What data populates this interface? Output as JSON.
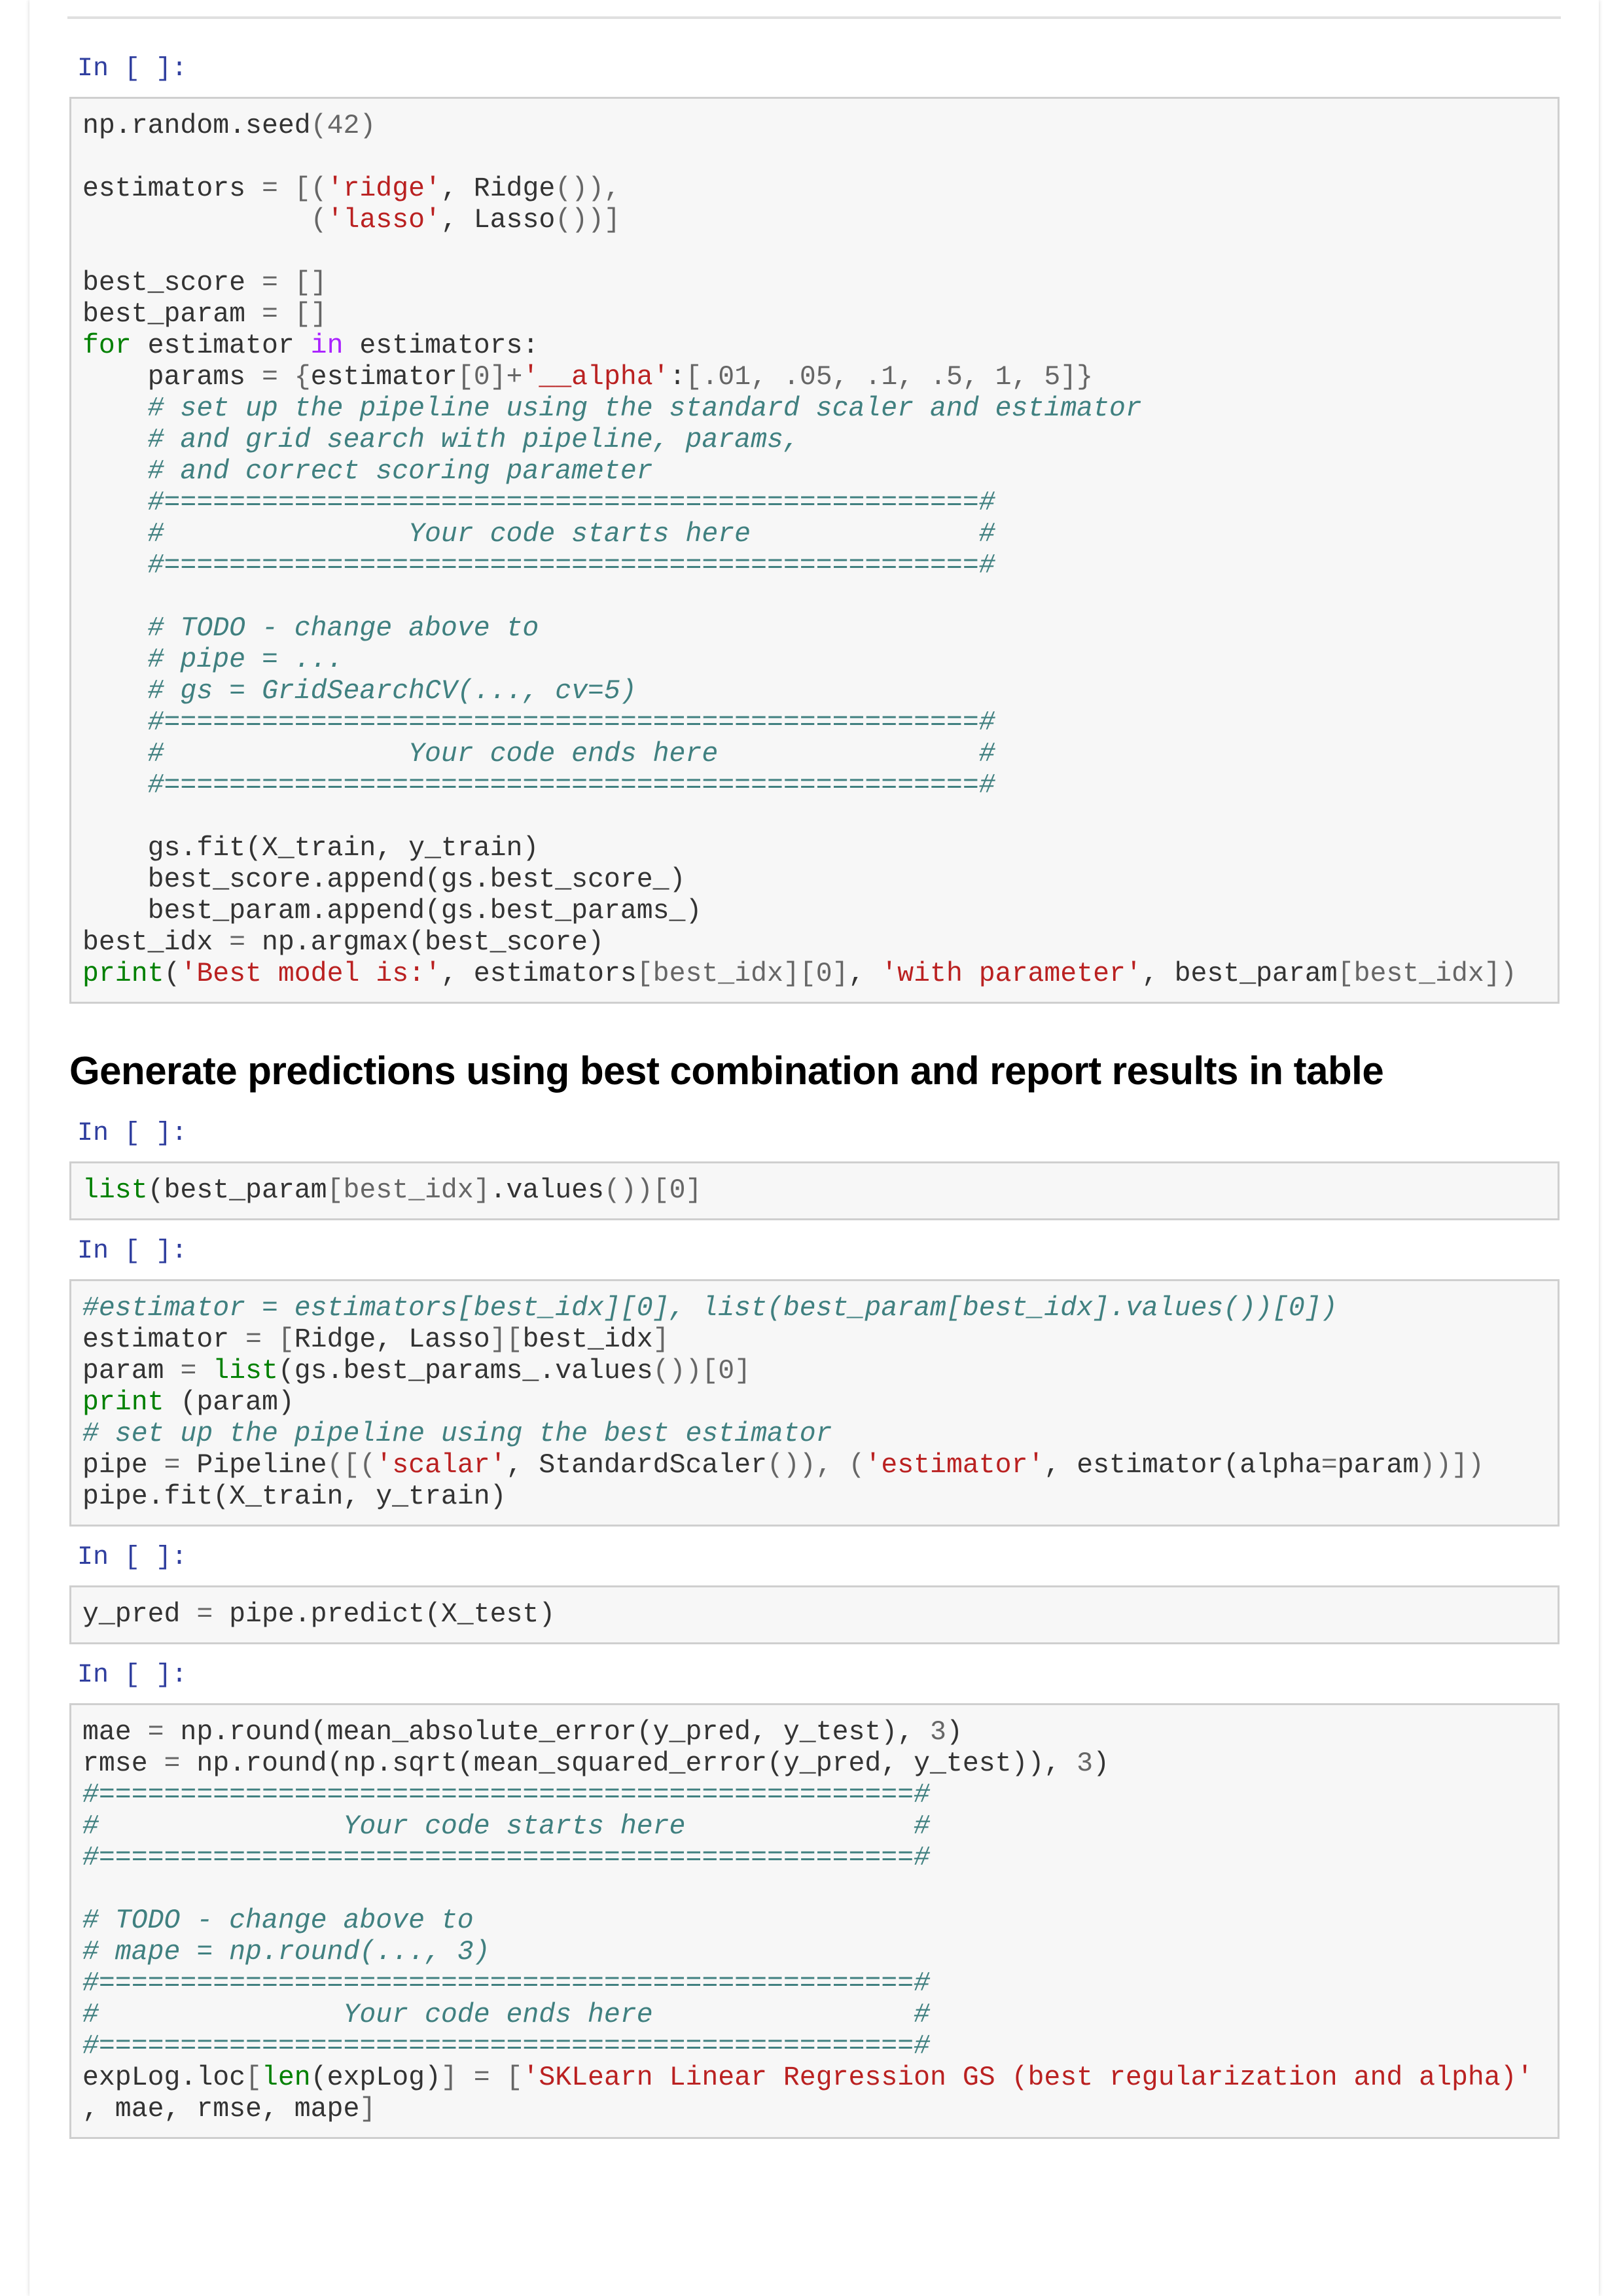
{
  "colors": {
    "prompt": "#303f9f",
    "keyword": "#008000",
    "operator_word": "#aa22ff",
    "string": "#ba2121",
    "comment": "#408080",
    "cell_bg": "#f7f7f7"
  },
  "cells": [
    {
      "prompt": "In [ ]:",
      "lines": [
        [
          [
            "n",
            "np.random.seed"
          ],
          [
            "o",
            "("
          ],
          [
            "o",
            "42"
          ],
          [
            "o",
            ")"
          ]
        ],
        [],
        [
          [
            "n",
            "estimators "
          ],
          [
            "o",
            "="
          ],
          [
            "o",
            " [("
          ],
          [
            "s",
            "'ridge'"
          ],
          [
            "n",
            ", Ridge"
          ],
          [
            "o",
            "()),"
          ]
        ],
        [
          [
            "n",
            "              "
          ],
          [
            "o",
            "("
          ],
          [
            "s",
            "'lasso'"
          ],
          [
            "n",
            ", Lasso"
          ],
          [
            "o",
            "())]"
          ]
        ],
        [],
        [
          [
            "n",
            "best_score "
          ],
          [
            "o",
            "= []"
          ]
        ],
        [
          [
            "n",
            "best_param "
          ],
          [
            "o",
            "= []"
          ]
        ],
        [
          [
            "k",
            "for"
          ],
          [
            "n",
            " estimator "
          ],
          [
            "w",
            "in"
          ],
          [
            "n",
            " estimators:"
          ]
        ],
        [
          [
            "n",
            "    params "
          ],
          [
            "o",
            "= {"
          ],
          [
            "n",
            "estimator"
          ],
          [
            "o",
            "[0]+"
          ],
          [
            "s",
            "'__alpha'"
          ],
          [
            "n",
            ":"
          ],
          [
            "o",
            "[.01, .05, .1, .5, 1, 5]}"
          ]
        ],
        [
          [
            "c",
            "    # set up the pipeline using the standard scaler and estimator"
          ]
        ],
        [
          [
            "c",
            "    # and grid search with pipeline, params,"
          ]
        ],
        [
          [
            "c",
            "    # and correct scoring parameter"
          ]
        ],
        [
          [
            "c",
            "    #==================================================#"
          ]
        ],
        [
          [
            "c",
            "    #               Your code starts here              #"
          ]
        ],
        [
          [
            "c",
            "    #==================================================#"
          ]
        ],
        [],
        [
          [
            "c",
            "    # TODO - change above to"
          ]
        ],
        [
          [
            "c",
            "    # pipe = ..."
          ]
        ],
        [
          [
            "c",
            "    # gs = GridSearchCV(..., cv=5)"
          ]
        ],
        [
          [
            "c",
            "    #==================================================#"
          ]
        ],
        [
          [
            "c",
            "    #               Your code ends here                #"
          ]
        ],
        [
          [
            "c",
            "    #==================================================#"
          ]
        ],
        [],
        [
          [
            "n",
            "    gs.fit(X_train, y_train)"
          ]
        ],
        [
          [
            "n",
            "    best_score.append(gs.best_score_)"
          ]
        ],
        [
          [
            "n",
            "    best_param.append(gs.best_params_)"
          ]
        ],
        [
          [
            "n",
            "best_idx "
          ],
          [
            "o",
            "="
          ],
          [
            "n",
            " np.argmax(best_score)"
          ]
        ],
        [
          [
            "k",
            "print"
          ],
          [
            "n",
            "("
          ],
          [
            "s",
            "'Best model is:'"
          ],
          [
            "n",
            ", estimators"
          ],
          [
            "o",
            "[best_idx][0]"
          ],
          [
            "n",
            ", "
          ],
          [
            "s",
            "'with parameter'"
          ],
          [
            "n",
            ", best_param"
          ],
          [
            "o",
            "[best_idx])"
          ]
        ]
      ]
    }
  ],
  "heading": "Generate predictions using best combination and report results in table",
  "cells2": [
    {
      "prompt": "In [ ]:",
      "lines": [
        [
          [
            "k",
            "list"
          ],
          [
            "n",
            "(best_param"
          ],
          [
            "o",
            "[best_idx]"
          ],
          [
            "n",
            ".values"
          ],
          [
            "o",
            "())[0]"
          ]
        ]
      ]
    },
    {
      "prompt": "In [ ]:",
      "lines": [
        [
          [
            "c",
            "#estimator = estimators[best_idx][0], list(best_param[best_idx].values())[0])"
          ]
        ],
        [
          [
            "n",
            "estimator "
          ],
          [
            "o",
            "= ["
          ],
          [
            "n",
            "Ridge, Lasso"
          ],
          [
            "o",
            "]["
          ],
          [
            "n",
            "best_idx"
          ],
          [
            "o",
            "]"
          ]
        ],
        [
          [
            "n",
            "param "
          ],
          [
            "o",
            "="
          ],
          [
            "n",
            " "
          ],
          [
            "k",
            "list"
          ],
          [
            "n",
            "(gs.best_params_.values"
          ],
          [
            "o",
            "())[0]"
          ]
        ],
        [
          [
            "k",
            "print"
          ],
          [
            "n",
            " (param)"
          ]
        ],
        [
          [
            "c",
            "# set up the pipeline using the best estimator"
          ]
        ],
        [
          [
            "n",
            "pipe "
          ],
          [
            "o",
            "="
          ],
          [
            "n",
            " Pipeline"
          ],
          [
            "o",
            "([("
          ],
          [
            "s",
            "'scalar'"
          ],
          [
            "n",
            ", StandardScaler"
          ],
          [
            "o",
            "()), ("
          ],
          [
            "s",
            "'estimator'"
          ],
          [
            "n",
            ", estimator(alpha"
          ],
          [
            "o",
            "="
          ],
          [
            "n",
            "param"
          ],
          [
            "o",
            "))])"
          ]
        ],
        [
          [
            "n",
            "pipe.fit(X_train, y_train)"
          ]
        ]
      ]
    },
    {
      "prompt": "In [ ]:",
      "lines": [
        [
          [
            "n",
            "y_pred "
          ],
          [
            "o",
            "="
          ],
          [
            "n",
            " pipe.predict(X_test)"
          ]
        ]
      ]
    },
    {
      "prompt": "In [ ]:",
      "lines": [
        [
          [
            "n",
            "mae "
          ],
          [
            "o",
            "="
          ],
          [
            "n",
            " np.round(mean_absolute_error(y_pred, y_test), "
          ],
          [
            "o",
            "3"
          ],
          [
            "n",
            ")"
          ]
        ],
        [
          [
            "n",
            "rmse "
          ],
          [
            "o",
            "="
          ],
          [
            "n",
            " np.round(np.sqrt(mean_squared_error(y_pred, y_test)), "
          ],
          [
            "o",
            "3"
          ],
          [
            "n",
            ")"
          ]
        ],
        [
          [
            "c",
            "#==================================================#"
          ]
        ],
        [
          [
            "c",
            "#               Your code starts here              #"
          ]
        ],
        [
          [
            "c",
            "#==================================================#"
          ]
        ],
        [],
        [
          [
            "c",
            "# TODO - change above to"
          ]
        ],
        [
          [
            "c",
            "# mape = np.round(..., 3)"
          ]
        ],
        [
          [
            "c",
            "#==================================================#"
          ]
        ],
        [
          [
            "c",
            "#               Your code ends here                #"
          ]
        ],
        [
          [
            "c",
            "#==================================================#"
          ]
        ],
        [
          [
            "n",
            "expLog.loc"
          ],
          [
            "o",
            "["
          ],
          [
            "k",
            "len"
          ],
          [
            "n",
            "(expLog)"
          ],
          [
            "o",
            "] = ["
          ],
          [
            "s",
            "'SKLearn Linear Regression GS (best regularization and alpha)'"
          ]
        ],
        [
          [
            "n",
            ", mae, rmse, mape"
          ],
          [
            "o",
            "]"
          ]
        ]
      ]
    }
  ]
}
